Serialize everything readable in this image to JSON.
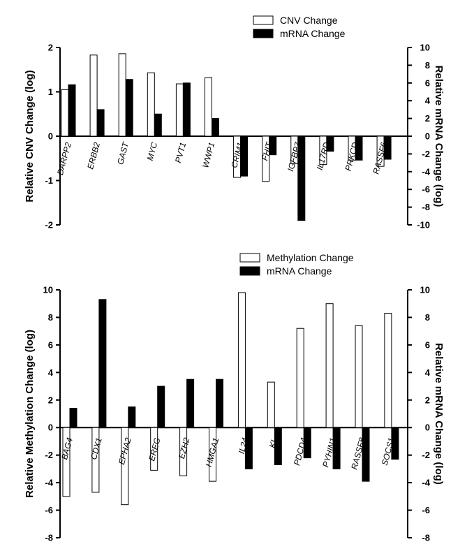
{
  "chart_data": [
    {
      "type": "bar",
      "ylabel": "Relative CNV Change (log)",
      "y2label": "Relative mRNA Change (log)",
      "ylim": [
        -2,
        2
      ],
      "y2lim": [
        -10,
        10
      ],
      "yticks": [
        "-2",
        "-1",
        "0",
        "1",
        "2"
      ],
      "y2ticks": [
        "-10",
        "-8",
        "-6",
        "-4",
        "-2",
        "0",
        "2",
        "4",
        "6",
        "8",
        "10"
      ],
      "legend_position": "top-right",
      "categories": [
        "DARPP2",
        "ERBB2",
        "GAST",
        "MYC",
        "PVT1",
        "WWP1",
        "CRIM1",
        "FHIT",
        "IGFBP7",
        "IL17RD",
        "PRKCD",
        "RASSF6"
      ],
      "series": [
        {
          "name": "CNV Change",
          "axis": "left",
          "fill": "#ffffff",
          "values": [
            1.05,
            1.83,
            1.86,
            1.43,
            1.18,
            1.32,
            -0.93,
            -1.02,
            -0.62,
            -0.64,
            -0.54,
            -0.68
          ]
        },
        {
          "name": "mRNA Change",
          "axis": "right",
          "fill": "#000000",
          "values": [
            5.8,
            3.0,
            6.4,
            2.5,
            6.0,
            2.0,
            -4.5,
            -2.1,
            -9.5,
            -1.7,
            -2.7,
            -2.6
          ]
        }
      ]
    },
    {
      "type": "bar",
      "ylabel": "Relative Methylation Change (log)",
      "y2label": "Relative mRNA Change (log)",
      "ylim": [
        -8,
        10
      ],
      "y2lim": [
        -8,
        10
      ],
      "yticks": [
        "-8",
        "-6",
        "-4",
        "-2",
        "0",
        "2",
        "4",
        "6",
        "8",
        "10"
      ],
      "y2ticks": [
        "-8",
        "-6",
        "-4",
        "-2",
        "0",
        "2",
        "4",
        "6",
        "8",
        "10"
      ],
      "legend_position": "top-right",
      "categories": [
        "BAG4",
        "CDX1",
        "EPHA2",
        "EREG",
        "EZH2",
        "HMGA1",
        "IL24",
        "KL",
        "PDCD4",
        "PYHIN1",
        "RASSF8",
        "SOCS1"
      ],
      "series": [
        {
          "name": "Methylation Change",
          "axis": "left",
          "fill": "#ffffff",
          "values": [
            -5.0,
            -4.7,
            -5.6,
            -3.1,
            -3.5,
            -3.9,
            9.8,
            3.3,
            7.2,
            9.0,
            7.4,
            8.3
          ]
        },
        {
          "name": "mRNA Change",
          "axis": "right",
          "fill": "#000000",
          "values": [
            1.4,
            9.3,
            1.5,
            3.0,
            3.5,
            3.5,
            -3.0,
            -2.7,
            -2.2,
            -3.0,
            -3.9,
            -2.3
          ]
        }
      ]
    }
  ]
}
